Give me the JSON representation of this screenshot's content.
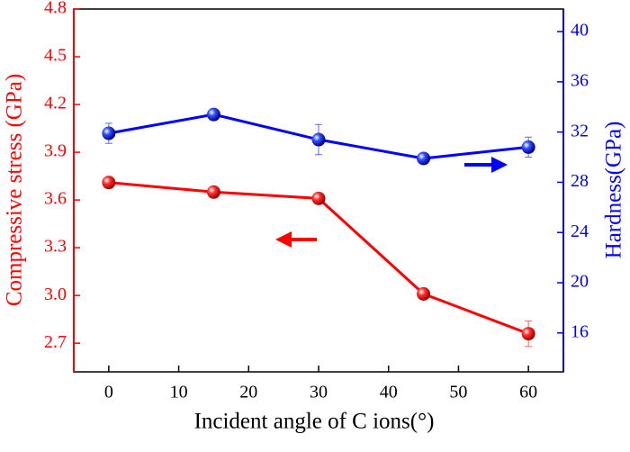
{
  "chart_data": {
    "type": "line",
    "x_label": "Incident angle of C ions(°)",
    "y_label": "Compressive stress (GPa)",
    "y2_label": "Hardness(GPa)",
    "x": [
      0,
      15,
      30,
      45,
      60
    ],
    "xlim": [
      -5,
      65
    ],
    "xticks": [
      0,
      10,
      20,
      30,
      40,
      50,
      60
    ],
    "ylim": [
      2.52,
      4.8
    ],
    "yticks": [
      2.7,
      {
        "value": 3,
        "label": "3.0"
      },
      3.3,
      3.6,
      3.9,
      4.2,
      4.5,
      4.8
    ],
    "y2lim": [
      12.9,
      41.8
    ],
    "y2ticks": [
      16,
      20,
      24,
      28,
      32,
      36,
      40
    ],
    "series": [
      {
        "name": "Compressive stress",
        "color": "#ff0000",
        "values": [
          3.71,
          3.65,
          3.61,
          3.01,
          2.76
        ],
        "errors": [
          0.02,
          0.02,
          0.02,
          0.02,
          0.08
        ]
      },
      {
        "name": "Hardness",
        "color": "#0000ff",
        "axis": "y2",
        "values": [
          31.9,
          33.4,
          31.4,
          29.9,
          30.8
        ],
        "errors": [
          0.8,
          0.3,
          1.2,
          0.3,
          0.8
        ]
      }
    ]
  }
}
